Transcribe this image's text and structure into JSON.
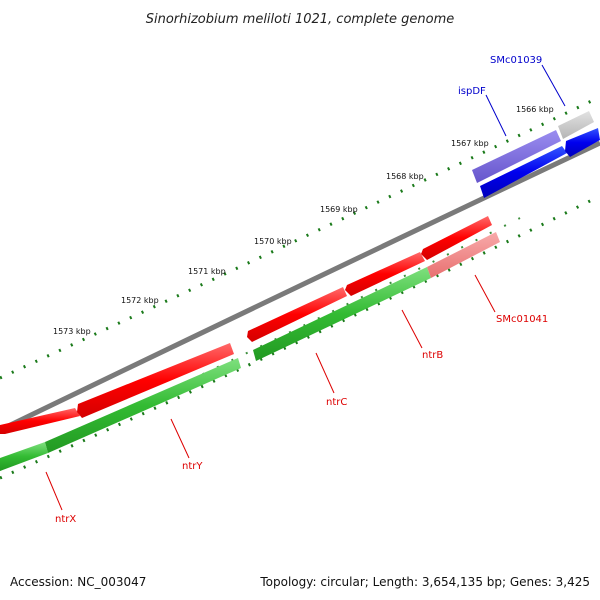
{
  "title": "Sinorhizobium meliloti 1021, complete genome",
  "footer": {
    "accession": "Accession: NC_003047",
    "summary": "Topology: circular; Length: 3,654,135 bp; Genes: 3,425"
  },
  "colors": {
    "backbone": "#7a7a7a",
    "tick": "#1a7a1a",
    "forward_gene": "#ff0000",
    "reverse_gene": "#33bb33",
    "label_forward": "#dd0000",
    "label_blue": "#0000cc",
    "gene_blue": "#0000ee",
    "gene_purple": "#7766dd",
    "gene_gray": "#c8c8c8",
    "gene_pink": "#f08080"
  },
  "scale_labels": [
    "1566 kbp",
    "1567 kbp",
    "1568 kbp",
    "1569 kbp",
    "1570 kbp",
    "1571 kbp",
    "1572 kbp",
    "1573 kbp"
  ],
  "genes": [
    {
      "name": "SMc01039",
      "label_color": "#0000cc"
    },
    {
      "name": "ispDF",
      "label_color": "#0000cc"
    },
    {
      "name": "SMc01041",
      "label_color": "#dd0000"
    },
    {
      "name": "ntrB",
      "label_color": "#dd0000"
    },
    {
      "name": "ntrC",
      "label_color": "#dd0000"
    },
    {
      "name": "ntrY",
      "label_color": "#dd0000"
    },
    {
      "name": "ntrX",
      "label_color": "#dd0000"
    }
  ]
}
